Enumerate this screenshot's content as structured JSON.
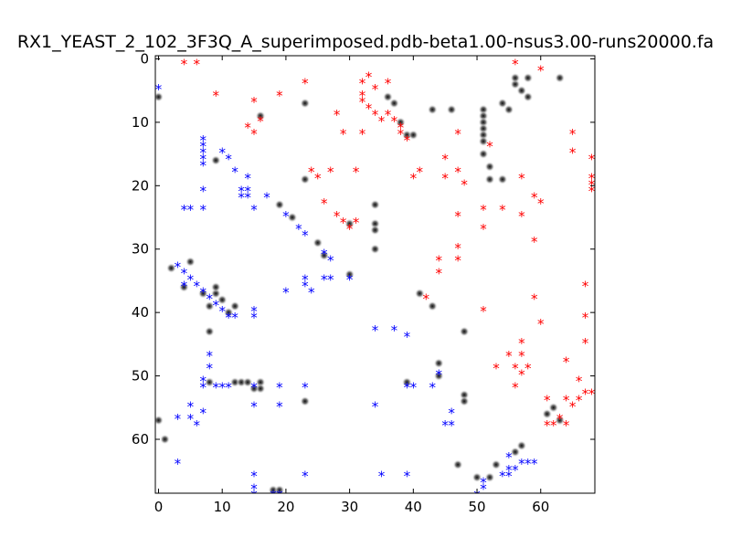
{
  "chart_data": {
    "type": "scatter",
    "title": "RX1_YEAST_2_102_3F3Q_A_superimposed.pdb-beta1.00-nsus3.00-runs20000.fa",
    "xlim": [
      -0.5,
      68.5
    ],
    "ylim": [
      68.5,
      -0.5
    ],
    "y_inverted": true,
    "grid": false,
    "legend": "none",
    "x_ticks": [
      0,
      10,
      20,
      30,
      40,
      50,
      60
    ],
    "y_ticks": [
      0,
      10,
      20,
      30,
      40,
      50,
      60
    ],
    "colors": {
      "red": "#ff0000",
      "blue": "#0000ff",
      "gray": "#000000"
    },
    "series": [
      {
        "marker": "red-star",
        "color": "#ff0000",
        "points": [
          [
            4,
            0
          ],
          [
            6,
            0
          ],
          [
            56,
            0
          ],
          [
            60,
            1
          ],
          [
            33,
            2
          ],
          [
            32,
            3
          ],
          [
            34,
            4
          ],
          [
            23,
            3
          ],
          [
            36,
            3
          ],
          [
            9,
            5
          ],
          [
            19,
            5
          ],
          [
            32,
            5
          ],
          [
            32,
            6
          ],
          [
            15,
            6
          ],
          [
            33,
            7
          ],
          [
            34,
            8
          ],
          [
            28,
            8
          ],
          [
            36,
            8
          ],
          [
            37,
            9
          ],
          [
            38,
            10
          ],
          [
            38,
            11
          ],
          [
            39,
            12
          ],
          [
            16,
            9
          ],
          [
            35,
            9
          ],
          [
            14,
            10
          ],
          [
            15,
            11
          ],
          [
            29,
            11
          ],
          [
            32,
            11
          ],
          [
            47,
            11
          ],
          [
            65,
            11
          ],
          [
            52,
            13
          ],
          [
            45,
            15
          ],
          [
            65,
            14
          ],
          [
            68,
            15
          ],
          [
            24,
            17
          ],
          [
            25,
            18
          ],
          [
            27,
            17
          ],
          [
            31,
            17
          ],
          [
            41,
            17
          ],
          [
            40,
            18
          ],
          [
            45,
            18
          ],
          [
            47,
            17
          ],
          [
            48,
            19
          ],
          [
            68,
            18
          ],
          [
            68,
            19
          ],
          [
            68,
            20
          ],
          [
            57,
            18
          ],
          [
            59,
            21
          ],
          [
            60,
            22
          ],
          [
            26,
            22
          ],
          [
            54,
            23
          ],
          [
            51,
            23
          ],
          [
            47,
            24
          ],
          [
            28,
            24
          ],
          [
            29,
            25
          ],
          [
            30,
            26
          ],
          [
            31,
            25
          ],
          [
            51,
            26
          ],
          [
            57,
            24
          ],
          [
            59,
            28
          ],
          [
            47,
            29
          ],
          [
            44,
            31
          ],
          [
            47,
            31
          ],
          [
            44,
            33
          ],
          [
            67,
            35
          ],
          [
            42,
            37
          ],
          [
            59,
            37
          ],
          [
            51,
            39
          ],
          [
            60,
            41
          ],
          [
            67,
            40
          ],
          [
            57,
            44
          ],
          [
            67,
            44
          ],
          [
            55,
            46
          ],
          [
            57,
            46
          ],
          [
            53,
            48
          ],
          [
            56,
            48
          ],
          [
            58,
            48
          ],
          [
            57,
            49
          ],
          [
            64,
            47
          ],
          [
            66,
            50
          ],
          [
            56,
            51
          ],
          [
            68,
            52
          ],
          [
            61,
            53
          ],
          [
            64,
            53
          ],
          [
            66,
            53
          ],
          [
            67,
            52
          ],
          [
            65,
            54
          ],
          [
            63,
            56
          ],
          [
            61,
            57
          ],
          [
            62,
            57
          ],
          [
            64,
            57
          ]
        ]
      },
      {
        "marker": "blue-star",
        "color": "#0000ff",
        "points": [
          [
            0,
            4
          ],
          [
            7,
            12
          ],
          [
            7,
            13
          ],
          [
            7,
            14
          ],
          [
            7,
            15
          ],
          [
            7,
            16
          ],
          [
            10,
            14
          ],
          [
            11,
            15
          ],
          [
            12,
            17
          ],
          [
            14,
            18
          ],
          [
            7,
            20
          ],
          [
            13,
            20
          ],
          [
            14,
            20
          ],
          [
            13,
            21
          ],
          [
            14,
            21
          ],
          [
            17,
            21
          ],
          [
            4,
            23
          ],
          [
            5,
            23
          ],
          [
            7,
            23
          ],
          [
            15,
            23
          ],
          [
            20,
            24
          ],
          [
            22,
            26
          ],
          [
            23,
            27
          ],
          [
            26,
            30
          ],
          [
            27,
            31
          ],
          [
            3,
            32
          ],
          [
            4,
            33
          ],
          [
            5,
            34
          ],
          [
            6,
            35
          ],
          [
            4,
            35
          ],
          [
            7,
            36
          ],
          [
            8,
            37
          ],
          [
            9,
            38
          ],
          [
            10,
            39
          ],
          [
            11,
            40
          ],
          [
            12,
            40
          ],
          [
            23,
            34
          ],
          [
            23,
            35
          ],
          [
            24,
            36
          ],
          [
            20,
            36
          ],
          [
            26,
            34
          ],
          [
            27,
            34
          ],
          [
            30,
            34
          ],
          [
            15,
            39
          ],
          [
            15,
            40
          ],
          [
            34,
            42
          ],
          [
            37,
            42
          ],
          [
            39,
            43
          ],
          [
            8,
            46
          ],
          [
            8,
            48
          ],
          [
            7,
            50
          ],
          [
            7,
            51
          ],
          [
            9,
            51
          ],
          [
            10,
            51
          ],
          [
            11,
            51
          ],
          [
            15,
            51
          ],
          [
            19,
            51
          ],
          [
            23,
            51
          ],
          [
            39,
            51
          ],
          [
            40,
            51
          ],
          [
            43,
            51
          ],
          [
            44,
            49
          ],
          [
            5,
            54
          ],
          [
            7,
            55
          ],
          [
            15,
            54
          ],
          [
            19,
            54
          ],
          [
            34,
            54
          ],
          [
            3,
            56
          ],
          [
            5,
            56
          ],
          [
            6,
            57
          ],
          [
            45,
            57
          ],
          [
            46,
            57
          ],
          [
            46,
            55
          ],
          [
            3,
            63
          ],
          [
            15,
            65
          ],
          [
            23,
            65
          ],
          [
            35,
            65
          ],
          [
            39,
            65
          ],
          [
            15,
            67
          ],
          [
            15,
            68
          ],
          [
            18,
            68
          ],
          [
            19,
            68
          ],
          [
            50,
            68
          ],
          [
            51,
            66
          ],
          [
            51,
            67
          ],
          [
            55,
            62
          ],
          [
            55,
            64
          ],
          [
            56,
            64
          ],
          [
            57,
            63
          ],
          [
            58,
            63
          ],
          [
            59,
            63
          ],
          [
            54,
            65
          ],
          [
            55,
            65
          ]
        ]
      },
      {
        "marker": "gray-blob",
        "color": "#000000",
        "points": [
          [
            0,
            6
          ],
          [
            1,
            60
          ],
          [
            0,
            57
          ],
          [
            2,
            33
          ],
          [
            5,
            32
          ],
          [
            4,
            36
          ],
          [
            7,
            37
          ],
          [
            8,
            39
          ],
          [
            9,
            37
          ],
          [
            10,
            38
          ],
          [
            11,
            40
          ],
          [
            12,
            39
          ],
          [
            8,
            43
          ],
          [
            9,
            36
          ],
          [
            8,
            51
          ],
          [
            12,
            51
          ],
          [
            13,
            51
          ],
          [
            14,
            51
          ],
          [
            16,
            51
          ],
          [
            16,
            52
          ],
          [
            15,
            52
          ],
          [
            9,
            16
          ],
          [
            16,
            9
          ],
          [
            23,
            7
          ],
          [
            23,
            19
          ],
          [
            19,
            23
          ],
          [
            21,
            25
          ],
          [
            25,
            29
          ],
          [
            26,
            31
          ],
          [
            30,
            26
          ],
          [
            34,
            23
          ],
          [
            34,
            26
          ],
          [
            34,
            27
          ],
          [
            34,
            30
          ],
          [
            36,
            6
          ],
          [
            37,
            7
          ],
          [
            38,
            10
          ],
          [
            39,
            12
          ],
          [
            40,
            12
          ],
          [
            43,
            8
          ],
          [
            46,
            8
          ],
          [
            51,
            8
          ],
          [
            51,
            9
          ],
          [
            51,
            10
          ],
          [
            51,
            11
          ],
          [
            51,
            12
          ],
          [
            51,
            13
          ],
          [
            51,
            15
          ],
          [
            52,
            17
          ],
          [
            52,
            19
          ],
          [
            54,
            19
          ],
          [
            54,
            7
          ],
          [
            55,
            8
          ],
          [
            56,
            4
          ],
          [
            57,
            5
          ],
          [
            58,
            3
          ],
          [
            58,
            6
          ],
          [
            56,
            3
          ],
          [
            63,
            3
          ],
          [
            61,
            56
          ],
          [
            62,
            55
          ],
          [
            63,
            57
          ],
          [
            41,
            37
          ],
          [
            43,
            39
          ],
          [
            44,
            48
          ],
          [
            48,
            53
          ],
          [
            48,
            54
          ],
          [
            48,
            43
          ],
          [
            47,
            64
          ],
          [
            50,
            66
          ],
          [
            53,
            64
          ],
          [
            52,
            66
          ],
          [
            56,
            62
          ],
          [
            57,
            61
          ],
          [
            23,
            54
          ],
          [
            30,
            34
          ],
          [
            18,
            68
          ],
          [
            19,
            68
          ],
          [
            39,
            51
          ],
          [
            44,
            50
          ]
        ]
      }
    ]
  }
}
